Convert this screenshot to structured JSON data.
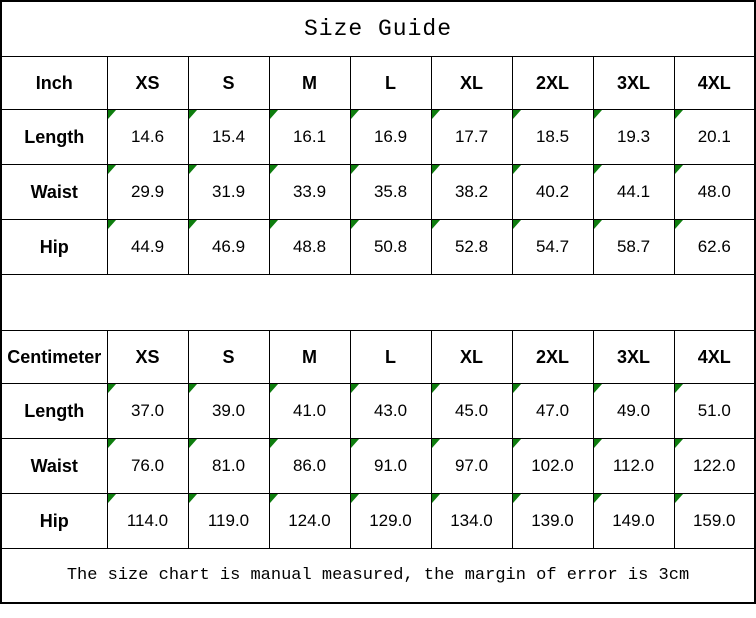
{
  "title": "Size Guide",
  "footer": "The size chart is manual measured, the margin of error is 3cm",
  "sizes": [
    "XS",
    "S",
    "M",
    "L",
    "XL",
    "2XL",
    "3XL",
    "4XL"
  ],
  "tables": [
    {
      "unit_label": "Inch",
      "rows": [
        {
          "label": "Length",
          "values": [
            "14.6",
            "15.4",
            "16.1",
            "16.9",
            "17.7",
            "18.5",
            "19.3",
            "20.1"
          ]
        },
        {
          "label": "Waist",
          "values": [
            "29.9",
            "31.9",
            "33.9",
            "35.8",
            "38.2",
            "40.2",
            "44.1",
            "48.0"
          ]
        },
        {
          "label": "Hip",
          "values": [
            "44.9",
            "46.9",
            "48.8",
            "50.8",
            "52.8",
            "54.7",
            "58.7",
            "62.6"
          ]
        }
      ]
    },
    {
      "unit_label": "Centimeter",
      "rows": [
        {
          "label": "Length",
          "values": [
            "37.0",
            "39.0",
            "41.0",
            "43.0",
            "45.0",
            "47.0",
            "49.0",
            "51.0"
          ]
        },
        {
          "label": "Waist",
          "values": [
            "76.0",
            "81.0",
            "86.0",
            "91.0",
            "97.0",
            "102.0",
            "112.0",
            "122.0"
          ]
        },
        {
          "label": "Hip",
          "values": [
            "114.0",
            "119.0",
            "124.0",
            "129.0",
            "134.0",
            "139.0",
            "149.0",
            "159.0"
          ]
        }
      ]
    }
  ],
  "colors": {
    "cell_marker_green": "#0e7d0e",
    "border": "#000000",
    "background": "#ffffff",
    "text": "#000000"
  },
  "icons": {
    "cell_marker": "green-triangle-icon"
  }
}
